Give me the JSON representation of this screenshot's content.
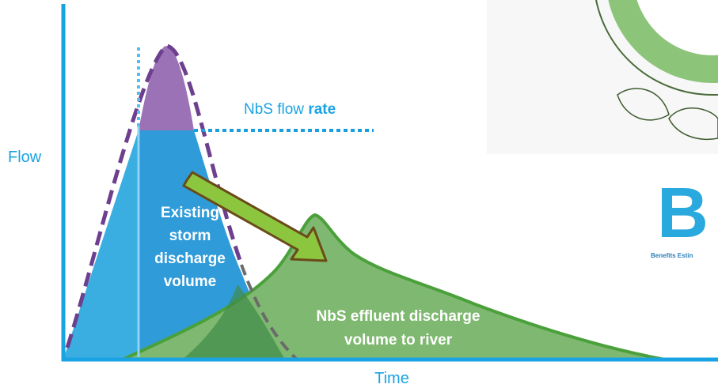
{
  "axes": {
    "y_label": "Flow",
    "x_label": "Time"
  },
  "annotations": {
    "flow_rate": {
      "prefix": "NbS flow",
      "emphasis": "rate"
    },
    "storm_volume": [
      "Existing",
      "storm",
      "discharge",
      "volume"
    ],
    "effluent_volume": [
      "NbS effluent discharge",
      "volume to river"
    ]
  },
  "logo": {
    "letter": "B",
    "caption": "Benefits Estin"
  }
}
